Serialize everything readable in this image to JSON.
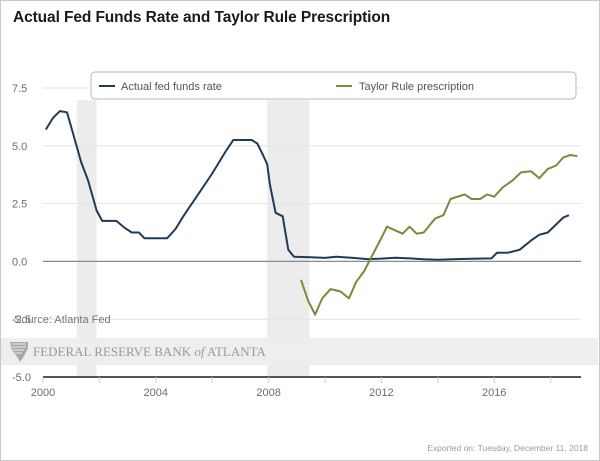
{
  "title": "Actual Fed Funds Rate and Taylor Rule Prescription",
  "source": "Source: Atlanta Fed",
  "watermark": {
    "text_main": "FEDERAL RESERVE BANK ",
    "text_of": "of",
    "text_end": " ATLANTA"
  },
  "exported_on": "Exported on: Tuesday, December 11, 2018",
  "chart_data": {
    "type": "line",
    "title": "Actual Fed Funds Rate and Taylor Rule Prescription",
    "xlabel": "",
    "ylabel": "",
    "xlim": [
      2000,
      2019.0
    ],
    "ylim": [
      -5.0,
      7.5
    ],
    "x_ticks": [
      2000,
      2002,
      2004,
      2006,
      2008,
      2010,
      2012,
      2014,
      2016,
      2018
    ],
    "x_tick_labels": [
      "2000",
      "",
      "2004",
      "",
      "2008",
      "",
      "2012",
      "",
      "2016",
      ""
    ],
    "y_ticks": [
      -5.0,
      -2.5,
      0.0,
      2.5,
      5.0,
      7.5
    ],
    "y_tick_labels": [
      "-5.0",
      "-2.5",
      "0.0",
      "2.5",
      "5.0",
      "7.5"
    ],
    "grid": true,
    "legend_position": "top",
    "recessions": [
      {
        "start": 2001.2,
        "end": 2001.9
      },
      {
        "start": 2007.95,
        "end": 2009.45
      }
    ],
    "series": [
      {
        "name": "Actual fed funds rate",
        "color": "#1f3b57",
        "points": [
          [
            2000.1,
            5.7
          ],
          [
            2000.35,
            6.2
          ],
          [
            2000.6,
            6.5
          ],
          [
            2000.85,
            6.45
          ],
          [
            2001.05,
            5.6
          ],
          [
            2001.35,
            4.3
          ],
          [
            2001.6,
            3.5
          ],
          [
            2001.9,
            2.2
          ],
          [
            2002.1,
            1.75
          ],
          [
            2002.6,
            1.75
          ],
          [
            2002.9,
            1.45
          ],
          [
            2003.15,
            1.25
          ],
          [
            2003.4,
            1.25
          ],
          [
            2003.6,
            1.0
          ],
          [
            2004.4,
            1.0
          ],
          [
            2004.7,
            1.4
          ],
          [
            2005.0,
            2.0
          ],
          [
            2005.5,
            2.9
          ],
          [
            2006.0,
            3.8
          ],
          [
            2006.5,
            4.8
          ],
          [
            2006.75,
            5.25
          ],
          [
            2007.4,
            5.25
          ],
          [
            2007.6,
            5.1
          ],
          [
            2007.8,
            4.6
          ],
          [
            2007.95,
            4.2
          ],
          [
            2008.05,
            3.3
          ],
          [
            2008.25,
            2.1
          ],
          [
            2008.5,
            1.95
          ],
          [
            2008.7,
            0.5
          ],
          [
            2008.9,
            0.2
          ],
          [
            2009.5,
            0.18
          ],
          [
            2010.0,
            0.15
          ],
          [
            2010.4,
            0.2
          ],
          [
            2011.0,
            0.15
          ],
          [
            2011.5,
            0.1
          ],
          [
            2012.0,
            0.12
          ],
          [
            2012.5,
            0.16
          ],
          [
            2013.0,
            0.13
          ],
          [
            2013.5,
            0.09
          ],
          [
            2014.0,
            0.07
          ],
          [
            2014.5,
            0.09
          ],
          [
            2015.0,
            0.11
          ],
          [
            2015.9,
            0.13
          ],
          [
            2016.1,
            0.37
          ],
          [
            2016.5,
            0.38
          ],
          [
            2016.9,
            0.5
          ],
          [
            2017.3,
            0.9
          ],
          [
            2017.6,
            1.15
          ],
          [
            2017.9,
            1.25
          ],
          [
            2018.2,
            1.6
          ],
          [
            2018.45,
            1.9
          ],
          [
            2018.65,
            2.0
          ]
        ]
      },
      {
        "name": "Taylor Rule prescription",
        "color": "#7b8a3a",
        "points": [
          [
            2009.15,
            -0.8
          ],
          [
            2009.4,
            -1.7
          ],
          [
            2009.65,
            -2.3
          ],
          [
            2009.9,
            -1.6
          ],
          [
            2010.2,
            -1.2
          ],
          [
            2010.55,
            -1.3
          ],
          [
            2010.85,
            -1.6
          ],
          [
            2011.1,
            -0.9
          ],
          [
            2011.4,
            -0.4
          ],
          [
            2011.65,
            0.2
          ],
          [
            2011.95,
            0.9
          ],
          [
            2012.2,
            1.5
          ],
          [
            2012.75,
            1.2
          ],
          [
            2013.0,
            1.5
          ],
          [
            2013.25,
            1.2
          ],
          [
            2013.5,
            1.25
          ],
          [
            2013.9,
            1.85
          ],
          [
            2014.2,
            2.0
          ],
          [
            2014.45,
            2.7
          ],
          [
            2014.95,
            2.9
          ],
          [
            2015.2,
            2.7
          ],
          [
            2015.5,
            2.7
          ],
          [
            2015.75,
            2.9
          ],
          [
            2016.0,
            2.8
          ],
          [
            2016.3,
            3.2
          ],
          [
            2016.65,
            3.5
          ],
          [
            2016.95,
            3.85
          ],
          [
            2017.3,
            3.9
          ],
          [
            2017.6,
            3.6
          ],
          [
            2017.9,
            4.0
          ],
          [
            2018.2,
            4.15
          ],
          [
            2018.45,
            4.5
          ],
          [
            2018.7,
            4.6
          ],
          [
            2018.95,
            4.55
          ]
        ]
      }
    ]
  }
}
